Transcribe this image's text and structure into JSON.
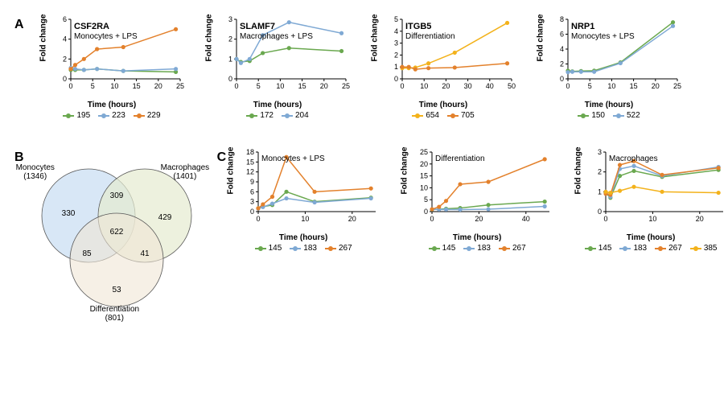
{
  "colors": {
    "green": "#6aa84f",
    "blue": "#7fa9d4",
    "orange": "#e3812c",
    "yellow": "#f3b21b",
    "vennMono": "#c8ddf2",
    "vennMacro": "#e5ebd0",
    "vennDiff": "#f0e6d6",
    "vennCenter": "#d7d8c2",
    "stroke": "#555",
    "axis": "#000",
    "bg": "#ffffff"
  },
  "A": {
    "label": "A",
    "charts": [
      {
        "title": "CSF2RA",
        "subtitle": "Monocytes + LPS",
        "xmax": 25,
        "xticks": [
          0,
          5,
          10,
          15,
          20,
          25
        ],
        "ymax": 6,
        "yticks": [
          0,
          2,
          4,
          6
        ],
        "series": [
          {
            "label": "195",
            "color": "green",
            "points": [
              [
                0,
                0.9
              ],
              [
                1,
                0.9
              ],
              [
                3,
                0.9
              ],
              [
                6,
                1.0
              ],
              [
                12,
                0.8
              ],
              [
                24,
                0.7
              ]
            ]
          },
          {
            "label": "223",
            "color": "blue",
            "points": [
              [
                0,
                1.1
              ],
              [
                1,
                1.0
              ],
              [
                3,
                0.9
              ],
              [
                6,
                1.0
              ],
              [
                12,
                0.8
              ],
              [
                24,
                1.0
              ]
            ]
          },
          {
            "label": "229",
            "color": "orange",
            "points": [
              [
                0,
                1.0
              ],
              [
                1,
                1.4
              ],
              [
                3,
                2.0
              ],
              [
                6,
                3.0
              ],
              [
                12,
                3.2
              ],
              [
                24,
                5.0
              ]
            ]
          }
        ]
      },
      {
        "title": "SLAMF7",
        "subtitle": "Macrophages + LPS",
        "xmax": 25,
        "xticks": [
          0,
          5,
          10,
          15,
          20,
          25
        ],
        "ymax": 3,
        "yticks": [
          0,
          1,
          2,
          3
        ],
        "series": [
          {
            "label": "172",
            "color": "green",
            "points": [
              [
                0,
                1.0
              ],
              [
                1,
                0.85
              ],
              [
                3,
                0.9
              ],
              [
                6,
                1.3
              ],
              [
                12,
                1.55
              ],
              [
                24,
                1.4
              ]
            ]
          },
          {
            "label": "204",
            "color": "blue",
            "points": [
              [
                0,
                1.0
              ],
              [
                1,
                0.8
              ],
              [
                3,
                1.0
              ],
              [
                6,
                2.2
              ],
              [
                12,
                2.85
              ],
              [
                24,
                2.3
              ]
            ]
          }
        ]
      },
      {
        "title": "ITGB5",
        "subtitle": "Differentiation",
        "xmax": 50,
        "xticks": [
          0,
          10,
          20,
          30,
          40,
          50
        ],
        "ymax": 5,
        "yticks": [
          0,
          1,
          2,
          3,
          4,
          5
        ],
        "series": [
          {
            "label": "654",
            "color": "yellow",
            "points": [
              [
                0,
                0.9
              ],
              [
                3,
                0.9
              ],
              [
                6,
                0.95
              ],
              [
                12,
                1.3
              ],
              [
                24,
                2.2
              ],
              [
                48,
                4.7
              ]
            ]
          },
          {
            "label": "705",
            "color": "orange",
            "points": [
              [
                0,
                1.0
              ],
              [
                3,
                1.0
              ],
              [
                6,
                0.8
              ],
              [
                12,
                0.9
              ],
              [
                24,
                0.95
              ],
              [
                48,
                1.3
              ]
            ]
          }
        ]
      },
      {
        "title": "NRP1",
        "subtitle": "Monocytes + LPS",
        "xmax": 25,
        "xticks": [
          0,
          5,
          10,
          15,
          20,
          25
        ],
        "ymax": 8,
        "yticks": [
          0,
          2,
          4,
          6,
          8
        ],
        "series": [
          {
            "label": "150",
            "color": "green",
            "points": [
              [
                0,
                1.1
              ],
              [
                1,
                1.0
              ],
              [
                3,
                1.05
              ],
              [
                6,
                1.1
              ],
              [
                12,
                2.2
              ],
              [
                24,
                7.6
              ]
            ]
          },
          {
            "label": "522",
            "color": "blue",
            "points": [
              [
                0,
                0.9
              ],
              [
                1,
                0.95
              ],
              [
                3,
                0.95
              ],
              [
                6,
                0.95
              ],
              [
                12,
                2.1
              ],
              [
                24,
                7.1
              ]
            ]
          }
        ]
      }
    ],
    "xlabel": "Time (hours)",
    "ylabel": "Fold change",
    "label_fontsize": 10,
    "title_fontsize": 11,
    "w": 140,
    "h": 100
  },
  "B": {
    "label": "B",
    "groups": {
      "mono": "Monocytes",
      "mono_n": "(1346)",
      "macro": "Macrophages",
      "macro_n": "(1401)",
      "diff": "Differentiation",
      "diff_n": "(801)"
    },
    "regions": {
      "mono_only": 330,
      "macro_only": 429,
      "diff_only": 53,
      "mono_macro": 309,
      "mono_diff": 85,
      "macro_diff": 41,
      "all": 622
    }
  },
  "C": {
    "label": "C",
    "xlabel": "Time (hours)",
    "ylabel": "Fold change",
    "charts": [
      {
        "title": "Monocytes + LPS",
        "xmax": 25,
        "xticks": [
          0,
          10,
          20
        ],
        "ymax": 18,
        "yticks": [
          0,
          3,
          6,
          9,
          12,
          15,
          18
        ],
        "series": [
          {
            "label": "145",
            "color": "green",
            "points": [
              [
                0,
                1
              ],
              [
                1,
                1.5
              ],
              [
                3,
                2
              ],
              [
                6,
                6
              ],
              [
                12,
                3
              ],
              [
                24,
                4.2
              ]
            ]
          },
          {
            "label": "183",
            "color": "blue",
            "points": [
              [
                0,
                0.9
              ],
              [
                1,
                1.4
              ],
              [
                3,
                2.4
              ],
              [
                6,
                4
              ],
              [
                12,
                2.8
              ],
              [
                24,
                4
              ]
            ]
          },
          {
            "label": "267",
            "color": "orange",
            "points": [
              [
                0,
                1
              ],
              [
                1,
                2.2
              ],
              [
                3,
                4.5
              ],
              [
                6,
                16.5
              ],
              [
                12,
                6
              ],
              [
                24,
                7
              ]
            ]
          }
        ],
        "legend": [
          "145",
          "183",
          "267"
        ]
      },
      {
        "title": "Differentiation",
        "xmax": 50,
        "xticks": [
          0,
          20,
          40
        ],
        "ymax": 25,
        "yticks": [
          0,
          5,
          10,
          15,
          20,
          25
        ],
        "series": [
          {
            "label": "145",
            "color": "green",
            "points": [
              [
                0,
                0.9
              ],
              [
                3,
                1
              ],
              [
                6,
                1.2
              ],
              [
                12,
                1.5
              ],
              [
                24,
                2.8
              ],
              [
                48,
                4.2
              ]
            ]
          },
          {
            "label": "183",
            "color": "blue",
            "points": [
              [
                0,
                1
              ],
              [
                3,
                0.9
              ],
              [
                6,
                0.9
              ],
              [
                12,
                0.85
              ],
              [
                24,
                1.0
              ],
              [
                48,
                2.2
              ]
            ]
          },
          {
            "label": "267",
            "color": "orange",
            "points": [
              [
                0,
                1
              ],
              [
                3,
                2
              ],
              [
                6,
                4.5
              ],
              [
                12,
                11.5
              ],
              [
                24,
                12.5
              ],
              [
                48,
                22
              ]
            ]
          }
        ],
        "legend": [
          "145",
          "183",
          "267"
        ]
      },
      {
        "title": "Macrophages",
        "xmax": 25,
        "xticks": [
          0,
          10,
          20
        ],
        "ymax": 3,
        "yticks": [
          0,
          1,
          2,
          3
        ],
        "series": [
          {
            "label": "145",
            "color": "green",
            "points": [
              [
                0,
                0.95
              ],
              [
                1,
                0.7
              ],
              [
                3,
                1.8
              ],
              [
                6,
                2.05
              ],
              [
                12,
                1.75
              ],
              [
                24,
                2.1
              ]
            ]
          },
          {
            "label": "183",
            "color": "blue",
            "points": [
              [
                0,
                1.0
              ],
              [
                1,
                0.75
              ],
              [
                3,
                2.15
              ],
              [
                6,
                2.3
              ],
              [
                12,
                1.8
              ],
              [
                24,
                2.25
              ]
            ]
          },
          {
            "label": "267",
            "color": "orange",
            "points": [
              [
                0,
                0.9
              ],
              [
                1,
                0.85
              ],
              [
                3,
                2.35
              ],
              [
                6,
                2.55
              ],
              [
                12,
                1.85
              ],
              [
                24,
                2.2
              ]
            ]
          },
          {
            "label": "385",
            "color": "yellow",
            "points": [
              [
                0,
                1.0
              ],
              [
                1,
                0.95
              ],
              [
                3,
                1.05
              ],
              [
                6,
                1.25
              ],
              [
                12,
                1.0
              ],
              [
                24,
                0.95
              ]
            ]
          }
        ],
        "legend": [
          "145",
          "183",
          "267",
          "385"
        ]
      }
    ],
    "w": 150,
    "h": 100
  }
}
